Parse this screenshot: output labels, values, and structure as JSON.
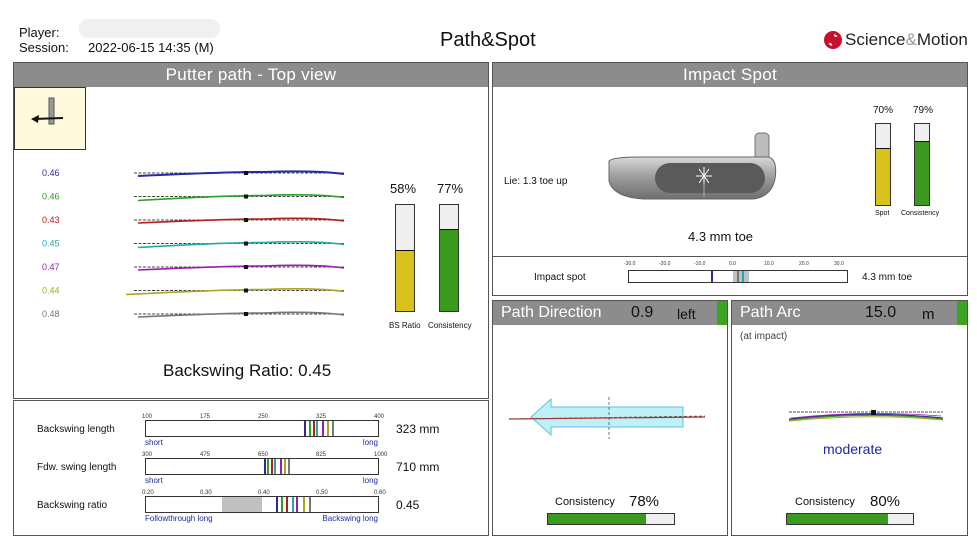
{
  "header": {
    "player_label": "Player:",
    "session_label": "Session:",
    "session_value": "2022-06-15 14:35 (M)",
    "title": "Path&Spot",
    "logo_main": "Science",
    "logo_amp": "&",
    "logo_end": "Motion"
  },
  "putter_path": {
    "title": "Putter path - Top view",
    "strokes": [
      {
        "value": "0.46",
        "color": "#2a2aa0"
      },
      {
        "value": "0.46",
        "color": "#2aa02a"
      },
      {
        "value": "0.43",
        "color": "#b01e1e"
      },
      {
        "value": "0.45",
        "color": "#22aaaa"
      },
      {
        "value": "0.47",
        "color": "#9a1eb0"
      },
      {
        "value": "0.44",
        "color": "#a8a81e"
      },
      {
        "value": "0.48",
        "color": "#777777"
      }
    ],
    "bs_ratio_pct": "58%",
    "consistency_pct": "77%",
    "bs_ratio_fill": 0.58,
    "consistency_fill": 0.77,
    "bs_ratio_label": "BS Ratio",
    "consistency_label": "Consistency",
    "backswing_ratio_text": "Backswing Ratio: 0.45",
    "colors": {
      "yellow": "#d9c21c",
      "green": "#3a9a1e"
    }
  },
  "scales": [
    {
      "label": "Backswing length",
      "ticks": [
        "100",
        "175",
        "250",
        "325",
        "400"
      ],
      "value": "323 mm",
      "left_note": "short",
      "right_note": "long"
    },
    {
      "label": "Fdw. swing length",
      "ticks": [
        "300",
        "475",
        "650",
        "825",
        "1000"
      ],
      "value": "710 mm",
      "left_note": "short",
      "right_note": "long"
    },
    {
      "label": "Backswing ratio",
      "ticks": [
        "0.20",
        "0.30",
        "0.40",
        "0.50",
        "0.60"
      ],
      "value": "0.45",
      "left_note": "Followthrough long",
      "right_note": "Backswing long"
    }
  ],
  "impact": {
    "title": "Impact Spot",
    "lie_text": "Lie: 1.3 toe up",
    "spot_pct": "70%",
    "consistency_pct": "79%",
    "spot_fill": 0.7,
    "consistency_fill": 0.79,
    "spot_label": "Spot",
    "consistency_label": "Consistency",
    "toe_text": "4.3 mm toe",
    "impact_spot_label": "Impact spot",
    "impact_ticks": [
      "-30.0",
      "-20.0",
      "-10.0",
      "0.0",
      "10.0",
      "20.0",
      "30.0"
    ],
    "impact_value": "4.3 mm toe"
  },
  "path_direction": {
    "title": "Path Direction",
    "value": "0.9",
    "unit": "left",
    "consistency_label": "Consistency",
    "consistency_pct": "78%",
    "consistency_fill": 0.78
  },
  "path_arc": {
    "title": "Path Arc",
    "value": "15.0",
    "unit": "m",
    "note": "(at impact)",
    "rating": "moderate",
    "consistency_label": "Consistency",
    "consistency_pct": "80%",
    "consistency_fill": 0.8
  }
}
